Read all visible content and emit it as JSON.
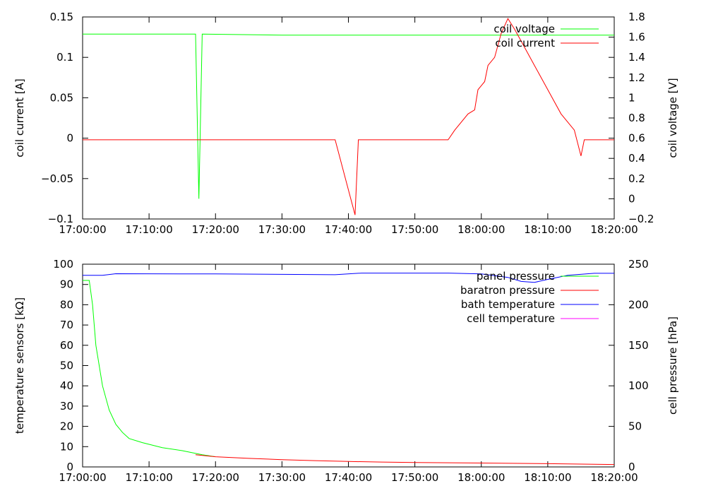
{
  "chart_data": [
    {
      "type": "line",
      "title": "",
      "xlabel": "",
      "ylabel": "coil current [A]",
      "y2label": "coil voltage [V]",
      "xlim": [
        "17:00:00",
        "18:20:00"
      ],
      "ylim": [
        -0.1,
        0.15
      ],
      "y2lim": [
        -0.2,
        1.8
      ],
      "x_ticks": [
        "17:00:00",
        "17:10:00",
        "17:20:00",
        "17:30:00",
        "17:40:00",
        "17:50:00",
        "18:00:00",
        "18:10:00",
        "18:20:00"
      ],
      "y_ticks": [
        "0.15",
        "0.1",
        "0.05",
        "0",
        "−0.05",
        "−0.1"
      ],
      "y2_ticks": [
        "1.8",
        "1.6",
        "1.4",
        "1.2",
        "1",
        "0.8",
        "0.6",
        "0.4",
        "0.2",
        "0",
        "−0.2"
      ],
      "grid": false,
      "legend_position": "top-right",
      "series": [
        {
          "name": "coil voltage",
          "axis": "y2",
          "color": "#00ff00",
          "points": [
            [
              "17:00:00",
              1.63
            ],
            [
              "17:10:00",
              1.63
            ],
            [
              "17:17:00",
              1.63
            ],
            [
              "17:17:30",
              0.0
            ],
            [
              "17:18:00",
              1.63
            ],
            [
              "17:30:00",
              1.62
            ],
            [
              "17:40:00",
              1.62
            ],
            [
              "17:50:00",
              1.62
            ],
            [
              "18:00:00",
              1.62
            ],
            [
              "18:10:00",
              1.62
            ],
            [
              "18:20:00",
              1.62
            ]
          ]
        },
        {
          "name": "coil current",
          "axis": "y",
          "color": "#ff0000",
          "points": [
            [
              "17:00:00",
              -0.002
            ],
            [
              "17:38:00",
              -0.002
            ],
            [
              "17:41:00",
              -0.095
            ],
            [
              "17:41:30",
              -0.002
            ],
            [
              "17:55:00",
              -0.002
            ],
            [
              "17:56:00",
              0.01
            ],
            [
              "17:58:00",
              0.03
            ],
            [
              "17:59:00",
              0.035
            ],
            [
              "17:59:30",
              0.06
            ],
            [
              "18:00:00",
              0.065
            ],
            [
              "18:00:30",
              0.07
            ],
            [
              "18:01:00",
              0.09
            ],
            [
              "18:02:00",
              0.1
            ],
            [
              "18:03:00",
              0.13
            ],
            [
              "18:04:00",
              0.148
            ],
            [
              "18:05:00",
              0.135
            ],
            [
              "18:06:00",
              0.12
            ],
            [
              "18:08:00",
              0.09
            ],
            [
              "18:10:00",
              0.06
            ],
            [
              "18:12:00",
              0.03
            ],
            [
              "18:14:00",
              0.01
            ],
            [
              "18:15:00",
              -0.022
            ],
            [
              "18:15:30",
              -0.002
            ],
            [
              "18:20:00",
              -0.002
            ]
          ]
        }
      ]
    },
    {
      "type": "line",
      "title": "",
      "xlabel": "",
      "ylabel": "temperature sensors [kΩ]",
      "y2label": "cell pressure [hPa]",
      "xlim": [
        "17:00:00",
        "18:20:00"
      ],
      "ylim": [
        0,
        100
      ],
      "y2lim": [
        0,
        250
      ],
      "x_ticks": [
        "17:00:00",
        "17:10:00",
        "17:20:00",
        "17:30:00",
        "17:40:00",
        "17:50:00",
        "18:00:00",
        "18:10:00",
        "18:20:00"
      ],
      "y_ticks": [
        "100",
        "90",
        "80",
        "70",
        "60",
        "50",
        "40",
        "30",
        "20",
        "10",
        "0"
      ],
      "y2_ticks": [
        "250",
        "200",
        "150",
        "100",
        "50",
        "0"
      ],
      "grid": false,
      "legend_position": "top-right",
      "series": [
        {
          "name": "panel pressure",
          "axis": "y",
          "color": "#00ff00",
          "points": [
            [
              "17:00:00",
              92
            ],
            [
              "17:01:00",
              92
            ],
            [
              "17:01:30",
              80
            ],
            [
              "17:02:00",
              60
            ],
            [
              "17:03:00",
              40
            ],
            [
              "17:04:00",
              28
            ],
            [
              "17:05:00",
              21
            ],
            [
              "17:06:00",
              17
            ],
            [
              "17:07:00",
              14
            ],
            [
              "17:09:00",
              12
            ],
            [
              "17:12:00",
              9.5
            ],
            [
              "17:15:00",
              8
            ],
            [
              "17:18:00",
              6
            ],
            [
              "17:20:00",
              5
            ]
          ]
        },
        {
          "name": "baratron pressure",
          "axis": "y",
          "color": "#ff0000",
          "points": [
            [
              "17:17:00",
              6
            ],
            [
              "17:20:00",
              5
            ],
            [
              "17:25:00",
              4.2
            ],
            [
              "17:30:00",
              3.6
            ],
            [
              "17:35:00",
              3.1
            ],
            [
              "17:40:00",
              2.7
            ],
            [
              "17:45:00",
              2.4
            ],
            [
              "17:50:00",
              2.2
            ],
            [
              "18:00:00",
              1.9
            ],
            [
              "18:10:00",
              1.6
            ],
            [
              "18:15:00",
              1.4
            ],
            [
              "18:20:00",
              1.2
            ]
          ]
        },
        {
          "name": "bath temperature",
          "axis": "y",
          "color": "#0000ff",
          "points": [
            [
              "17:00:00",
              94.5
            ],
            [
              "17:03:00",
              94.5
            ],
            [
              "17:05:00",
              95.3
            ],
            [
              "17:20:00",
              95.2
            ],
            [
              "17:30:00",
              95.0
            ],
            [
              "17:38:00",
              94.8
            ],
            [
              "17:42:00",
              95.6
            ],
            [
              "17:55:00",
              95.6
            ],
            [
              "18:00:00",
              95.2
            ],
            [
              "18:04:00",
              93.5
            ],
            [
              "18:06:00",
              91.5
            ],
            [
              "18:08:00",
              91.0
            ],
            [
              "18:10:00",
              92.5
            ],
            [
              "18:13:00",
              94.5
            ],
            [
              "18:17:00",
              95.5
            ],
            [
              "18:20:00",
              95.5
            ]
          ]
        },
        {
          "name": "cell temperature",
          "axis": "y",
          "color": "#ff00ff",
          "points": []
        }
      ]
    }
  ]
}
